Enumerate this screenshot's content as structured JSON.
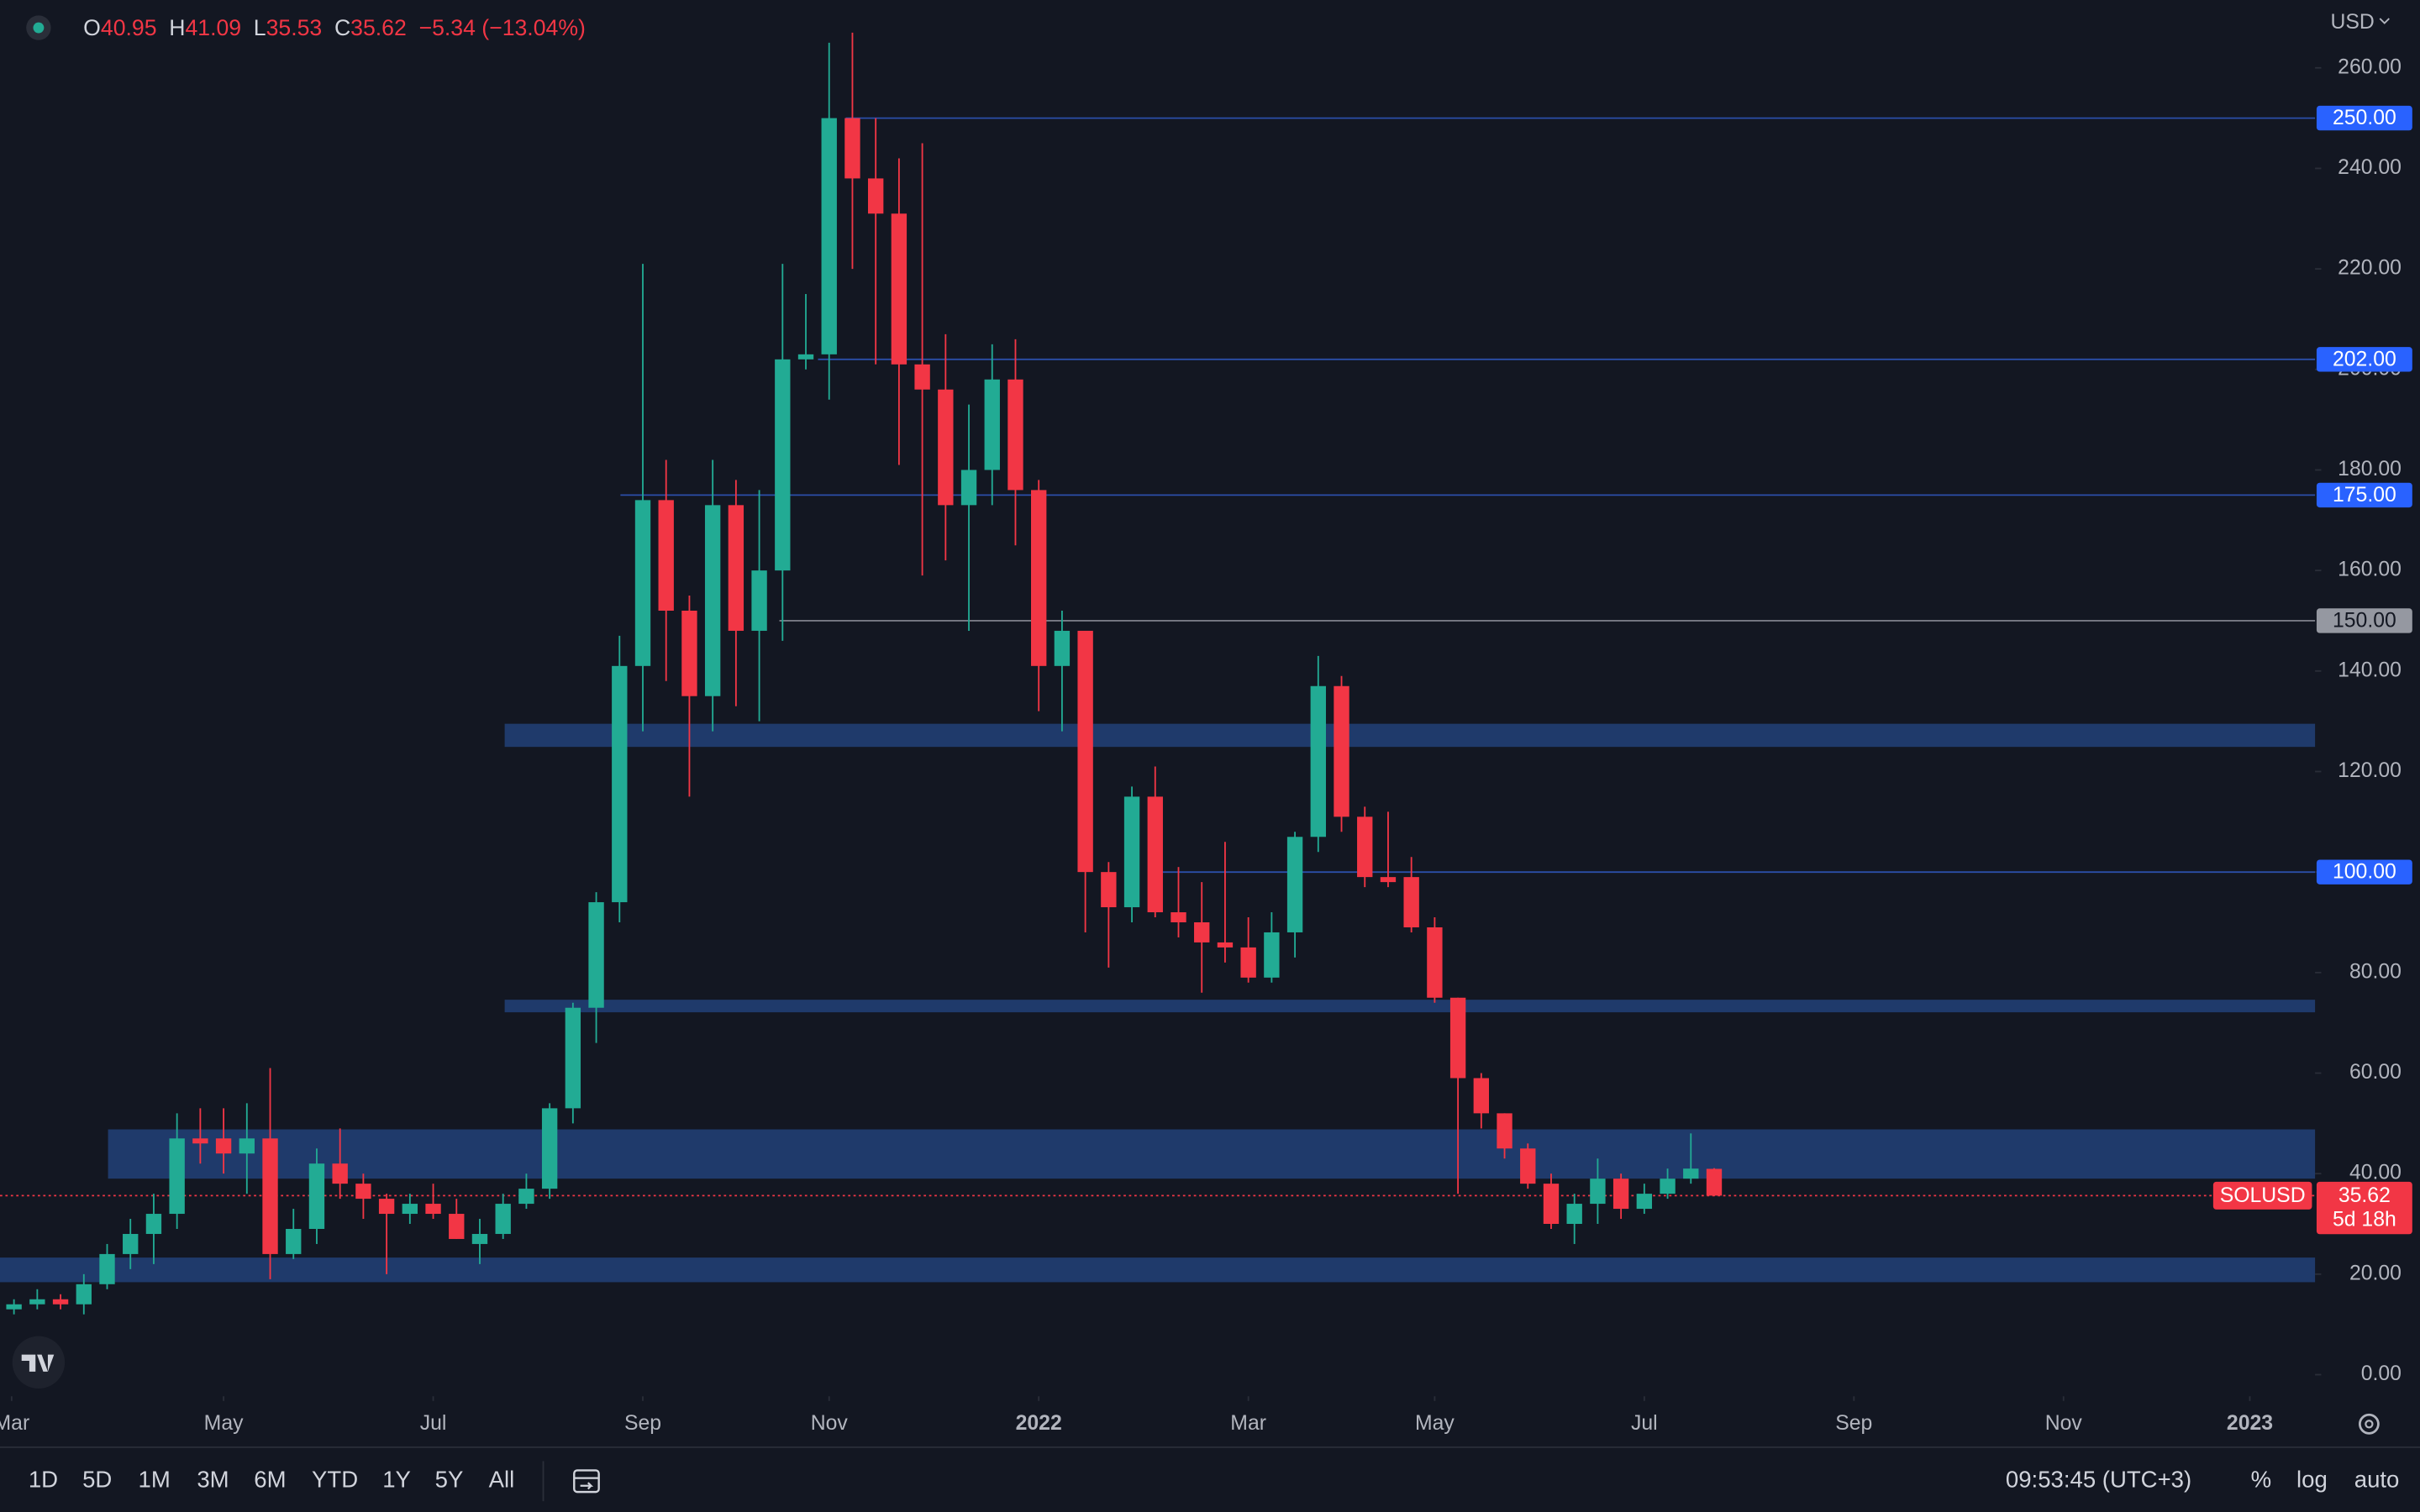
{
  "header": {
    "legend": [
      {
        "label": "O",
        "value": "40.95"
      },
      {
        "label": "H",
        "value": "41.09"
      },
      {
        "label": "L",
        "value": "35.53"
      },
      {
        "label": "C",
        "value": "35.62"
      }
    ],
    "change": "−5.34 (−13.04%)"
  },
  "currency": "USD",
  "toolbar": {
    "ranges": [
      "1D",
      "5D",
      "1M",
      "3M",
      "6M",
      "YTD",
      "1Y",
      "5Y",
      "All"
    ],
    "time": "09:53:45 (UTC+3)",
    "percent": "%",
    "log": "log",
    "auto": "auto"
  },
  "chart_data": {
    "type": "candlestick",
    "open": [
      13,
      14,
      15,
      14,
      18,
      24,
      28,
      32,
      47,
      47,
      44,
      47,
      24,
      29,
      42,
      38,
      35,
      32,
      34,
      32,
      26,
      28,
      34,
      37,
      53,
      73,
      94,
      141,
      174,
      152,
      135,
      173,
      148,
      160,
      202,
      203,
      250,
      238,
      231,
      201,
      196,
      173,
      180,
      198,
      176,
      141,
      148,
      100,
      93,
      115,
      92,
      90,
      86,
      85,
      79,
      88,
      107,
      137,
      111,
      99,
      99,
      89,
      75,
      59,
      52,
      45,
      38,
      30,
      34,
      39,
      33,
      36,
      39,
      40.95
    ],
    "high": [
      15,
      17,
      16,
      20,
      26,
      31,
      36,
      52,
      53,
      53,
      54,
      61,
      33,
      45,
      49,
      40,
      36,
      36,
      38,
      35,
      31,
      36,
      40,
      54,
      74,
      96,
      147,
      221,
      182,
      155,
      182,
      178,
      176,
      221,
      215,
      265,
      267,
      250,
      242,
      245,
      207,
      193,
      205,
      206,
      178,
      152,
      148,
      102,
      117,
      121,
      101,
      98,
      106,
      91,
      92,
      108,
      143,
      139,
      113,
      112,
      103,
      91,
      75,
      60,
      52,
      46,
      40,
      36,
      43,
      40,
      38,
      41,
      48,
      41.09
    ],
    "low": [
      12,
      13,
      13,
      12,
      17,
      21,
      22,
      29,
      42,
      40,
      36,
      19,
      23,
      26,
      35,
      31,
      20,
      30,
      31,
      27,
      22,
      27,
      33,
      35,
      50,
      66,
      90,
      128,
      138,
      115,
      128,
      133,
      130,
      146,
      200,
      194,
      220,
      201,
      181,
      159,
      162,
      148,
      173,
      165,
      132,
      128,
      88,
      81,
      90,
      91,
      87,
      76,
      82,
      78,
      78,
      83,
      104,
      108,
      97,
      97,
      88,
      74,
      36,
      49,
      43,
      37,
      29,
      26,
      30,
      31,
      32,
      35,
      38,
      35.53
    ],
    "close": [
      14,
      15,
      14,
      18,
      24,
      28,
      32,
      47,
      46,
      44,
      47,
      24,
      29,
      42,
      38,
      35,
      32,
      34,
      32,
      27,
      28,
      34,
      37,
      53,
      73,
      94,
      141,
      174,
      152,
      135,
      173,
      148,
      160,
      202,
      203,
      250,
      238,
      231,
      201,
      196,
      173,
      180,
      198,
      176,
      141,
      148,
      100,
      93,
      115,
      92,
      90,
      86,
      85,
      79,
      88,
      107,
      137,
      111,
      99,
      98,
      89,
      75,
      59,
      52,
      45,
      38,
      30,
      34,
      39,
      33,
      36,
      39,
      41,
      35.62
    ],
    "up_color": "#22ab94",
    "down_color": "#f23645",
    "ylim": [
      -4.3,
      273.5
    ],
    "yticks": [
      {
        "value": 0,
        "label": "0.00"
      },
      {
        "value": 20,
        "label": "20.00"
      },
      {
        "value": 40,
        "label": "40.00"
      },
      {
        "value": 60,
        "label": "60.00"
      },
      {
        "value": 80,
        "label": "80.00"
      },
      {
        "value": 100,
        "label": "100.00"
      },
      {
        "value": 120,
        "label": "120.00"
      },
      {
        "value": 140,
        "label": "140.00"
      },
      {
        "value": 160,
        "label": "160.00"
      },
      {
        "value": 180,
        "label": "180.00"
      },
      {
        "value": 200,
        "label": "200.00"
      },
      {
        "value": 220,
        "label": "220.00"
      },
      {
        "value": 240,
        "label": "240.00"
      },
      {
        "value": 260,
        "label": "260.00"
      }
    ],
    "xlim": [
      -0.6,
      98.8
    ],
    "xticks": [
      {
        "value": -0.1,
        "label": "Mar"
      },
      {
        "value": 9,
        "label": "May"
      },
      {
        "value": 18,
        "label": "Jul"
      },
      {
        "value": 27,
        "label": "Sep"
      },
      {
        "value": 35,
        "label": "Nov"
      },
      {
        "value": 44,
        "label": "2022"
      },
      {
        "value": 53,
        "label": "Mar"
      },
      {
        "value": 61,
        "label": "May"
      },
      {
        "value": 70,
        "label": "Jul"
      },
      {
        "value": 79,
        "label": "Sep"
      },
      {
        "value": 88,
        "label": "Nov"
      },
      {
        "value": 96,
        "label": "2023"
      }
    ],
    "hlines": [
      {
        "value": 250,
        "label": "250.00",
        "color": "#2962ff"
      },
      {
        "value": 202,
        "label": "202.00",
        "color": "#2962ff"
      },
      {
        "value": 175,
        "label": "175.00",
        "color": "#2962ff"
      },
      {
        "value": 150,
        "label": "150.00",
        "color": "#9598a1"
      },
      {
        "value": 100,
        "label": "100.00",
        "color": "#2962ff"
      }
    ],
    "zones": [
      {
        "low": 124.9,
        "high": 129.5
      },
      {
        "low": 72.1,
        "high": 74.6
      },
      {
        "low": 39,
        "high": 48.8
      },
      {
        "low": 18.4,
        "high": 23.3
      }
    ],
    "zone_color": "#1f3a6b",
    "last": {
      "name": "SOLUSD",
      "value": 35.62,
      "countdown": "5d 18h"
    }
  }
}
